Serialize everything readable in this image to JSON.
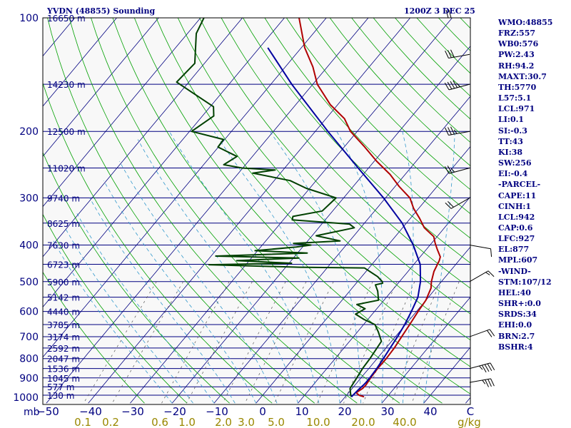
{
  "chart_data": {
    "type": "line",
    "title": "YVDN (48855) Sounding",
    "valid_time": "1200Z  3 DEC 25",
    "pressure_axis": {
      "label": "mb",
      "ticks": [
        100,
        200,
        300,
        400,
        500,
        600,
        700,
        800,
        900,
        1000
      ],
      "scale": "log",
      "range": [
        1050,
        100
      ]
    },
    "temperature_axis": {
      "ticks": [
        "−50",
        "−40",
        "−30",
        "−20",
        "−10",
        "0",
        "10",
        "20",
        "30",
        "40",
        "C"
      ],
      "values": [
        -50,
        -40,
        -30,
        -20,
        -10,
        0,
        10,
        20,
        30,
        40
      ],
      "range": [
        -50,
        50
      ],
      "skew": true
    },
    "mixing_ratio_axis": {
      "label": "g/kg",
      "ticks": [
        "0.1",
        "0.2",
        "0.6",
        "1.0",
        "2.0",
        "3.0",
        "5.0",
        "10.0",
        "20.0",
        "40.0"
      ],
      "values": [
        0.1,
        0.2,
        0.6,
        1.0,
        2.0,
        3.0,
        5.0,
        10.0,
        20.0,
        40.0
      ]
    },
    "height_labels": [
      {
        "p": 100,
        "text": "16650 m"
      },
      {
        "p": 150,
        "text": "14230 m"
      },
      {
        "p": 200,
        "text": "12500 m"
      },
      {
        "p": 250,
        "text": "11020 m"
      },
      {
        "p": 300,
        "text": "9740 m"
      },
      {
        "p": 350,
        "text": "8625 m"
      },
      {
        "p": 400,
        "text": "7630 m"
      },
      {
        "p": 450,
        "text": "6723 m"
      },
      {
        "p": 500,
        "text": "5900 m"
      },
      {
        "p": 550,
        "text": "5142 m"
      },
      {
        "p": 600,
        "text": "4440 m"
      },
      {
        "p": 650,
        "text": "3785 m"
      },
      {
        "p": 700,
        "text": "3174 m"
      },
      {
        "p": 750,
        "text": "2592 m"
      },
      {
        "p": 800,
        "text": "2047 m"
      },
      {
        "p": 850,
        "text": "1536 m"
      },
      {
        "p": 900,
        "text": "1045 m"
      },
      {
        "p": 950,
        "text": "577 m"
      },
      {
        "p": 1000,
        "text": "130 m"
      }
    ],
    "series": [
      {
        "color": "#b00000",
        "style": "temperature",
        "points": [
          [
            1010,
            24.5
          ],
          [
            1000,
            23
          ],
          [
            985,
            21.8
          ],
          [
            960,
            22.5
          ],
          [
            940,
            22.6
          ],
          [
            900,
            22.3
          ],
          [
            850,
            22.1
          ],
          [
            800,
            22.2
          ],
          [
            750,
            22.0
          ],
          [
            700,
            21.5
          ],
          [
            650,
            21.0
          ],
          [
            600,
            20.4
          ],
          [
            560,
            20.0
          ],
          [
            520,
            18.8
          ],
          [
            500,
            17.6
          ],
          [
            470,
            16.2
          ],
          [
            440,
            15.3
          ],
          [
            430,
            14.8
          ],
          [
            410,
            12.5
          ],
          [
            395,
            10.8
          ],
          [
            380,
            9.2
          ],
          [
            360,
            5.2
          ],
          [
            340,
            2.2
          ],
          [
            320,
            -1.2
          ],
          [
            300,
            -4.2
          ],
          [
            280,
            -9.0
          ],
          [
            260,
            -13.6
          ],
          [
            240,
            -19.4
          ],
          [
            220,
            -25.1
          ],
          [
            200,
            -31.6
          ],
          [
            185,
            -35.6
          ],
          [
            170,
            -41.7
          ],
          [
            150,
            -48.9
          ],
          [
            135,
            -53.4
          ],
          [
            120,
            -59.2
          ],
          [
            100,
            -66.5
          ]
        ]
      },
      {
        "color": "#004000",
        "style": "dewpoint",
        "points": [
          [
            1010,
            21.5
          ],
          [
            1000,
            21.0
          ],
          [
            960,
            19.5
          ],
          [
            900,
            19.0
          ],
          [
            850,
            18.5
          ],
          [
            800,
            18.3
          ],
          [
            720,
            17.6
          ],
          [
            680,
            15.0
          ],
          [
            650,
            12.7
          ],
          [
            630,
            9.1
          ],
          [
            610,
            6.0
          ],
          [
            600,
            6.6
          ],
          [
            590,
            7.2
          ],
          [
            575,
            4.4
          ],
          [
            560,
            8.7
          ],
          [
            530,
            6.7
          ],
          [
            510,
            4.9
          ],
          [
            505,
            6.3
          ],
          [
            500,
            5.9
          ],
          [
            485,
            3.8
          ],
          [
            460,
            -1.1
          ],
          [
            458,
            -16.8
          ],
          [
            451,
            -38.8
          ],
          [
            447,
            -19.4
          ],
          [
            440,
            -33.0
          ],
          [
            433,
            -18.7
          ],
          [
            428,
            -38.9
          ],
          [
            420,
            -17.7
          ],
          [
            414,
            -30.6
          ],
          [
            405,
            -21.5
          ],
          [
            400,
            -18.4
          ],
          [
            396,
            -22.9
          ],
          [
            390,
            -12.3
          ],
          [
            378,
            -19.0
          ],
          [
            360,
            -11.5
          ],
          [
            352,
            -13.4
          ],
          [
            343,
            -27.9
          ],
          [
            336,
            -28.4
          ],
          [
            325,
            -22.5
          ],
          [
            300,
            -21.8
          ],
          [
            283,
            -30.8
          ],
          [
            270,
            -36.2
          ],
          [
            258,
            -46.6
          ],
          [
            253,
            -41.9
          ],
          [
            250,
            -50.2
          ],
          [
            245,
            -55.2
          ],
          [
            233,
            -53.7
          ],
          [
            220,
            -60.1
          ],
          [
            210,
            -60.3
          ],
          [
            200,
            -69.5
          ],
          [
            182,
            -67.3
          ],
          [
            172,
            -69.2
          ],
          [
            148,
            -82.9
          ],
          [
            132,
            -82.3
          ],
          [
            110,
            -87.9
          ],
          [
            100,
            -89.2
          ]
        ]
      },
      {
        "color": "#0000a0",
        "style": "parcel",
        "points": [
          [
            1010,
            21.5
          ],
          [
            990,
            21.6
          ],
          [
            960,
            21.8
          ],
          [
            942,
            22.0
          ],
          [
            927,
            22.1
          ],
          [
            900,
            22.1
          ],
          [
            850,
            21.9
          ],
          [
            800,
            21.5
          ],
          [
            750,
            21.0
          ],
          [
            700,
            20.5
          ],
          [
            650,
            19.8
          ],
          [
            600,
            18.8
          ],
          [
            550,
            17.5
          ],
          [
            500,
            15.0
          ],
          [
            450,
            11.5
          ],
          [
            400,
            6.0
          ],
          [
            350,
            -1.0
          ],
          [
            300,
            -10.5
          ],
          [
            250,
            -22.5
          ],
          [
            200,
            -37.0
          ],
          [
            150,
            -55.0
          ],
          [
            120,
            -68.0
          ]
        ]
      }
    ],
    "winds": [
      {
        "p": 925,
        "dir": 80,
        "spd": 35
      },
      {
        "p": 850,
        "dir": 75,
        "spd": 45
      },
      {
        "p": 700,
        "dir": 70,
        "spd": 20
      },
      {
        "p": 500,
        "dir": 60,
        "spd": 15
      },
      {
        "p": 400,
        "dir": 100,
        "spd": 10
      },
      {
        "p": 300,
        "dir": 240,
        "spd": 20
      },
      {
        "p": 250,
        "dir": 255,
        "spd": 25
      },
      {
        "p": 200,
        "dir": 260,
        "spd": 35
      },
      {
        "p": 150,
        "dir": 255,
        "spd": 45
      },
      {
        "p": 125,
        "dir": 260,
        "spd": 30
      },
      {
        "p": 100,
        "dir": 270,
        "spd": 20
      }
    ]
  },
  "stats": [
    "WMO:48855",
    "FRZ:557",
    "WB0:576",
    "PW:2.43",
    "RH:94.2",
    "MAXT:30.7",
    "TH:5770",
    "L57:5.1",
    "LCL:971",
    "LI:0.1",
    "SI:-0.3",
    "TT:43",
    "KI:38",
    "SW:256",
    "EI:-0.4",
    "-PARCEL-",
    "CAPE:11",
    "CINH:1",
    "LCL:942",
    "CAP:0.6",
    "LFC:927",
    "EL:877",
    "MPL:607",
    "-WIND-",
    "STM:107/12",
    "HEL:40",
    "SHR+:0.0",
    "SRDS:34",
    "EHI:0.0",
    "BRN:2.7",
    "BSHR:4"
  ]
}
